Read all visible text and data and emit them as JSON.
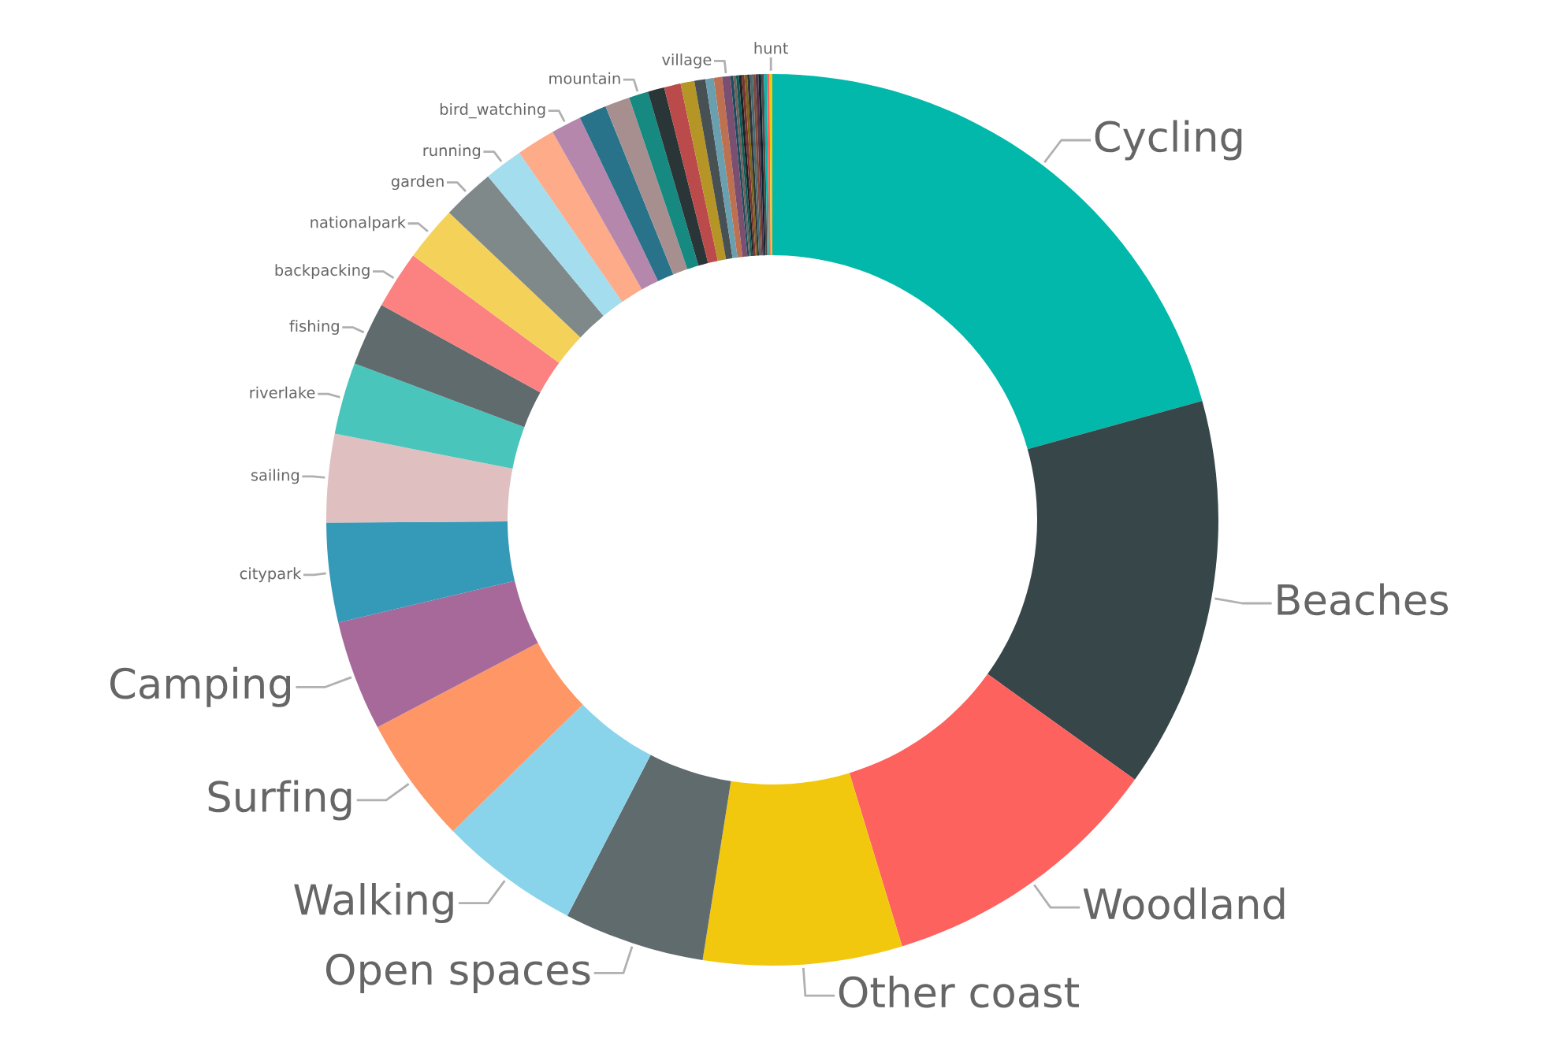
{
  "chart_data": {
    "type": "donut",
    "categories": [
      "Cycling",
      "Beaches",
      "Woodland",
      "Other coast",
      "Open spaces",
      "Walking",
      "Surfing",
      "Camping",
      "citypark",
      "sailing",
      "riverlake",
      "fishing",
      "backpacking",
      "nationalpark",
      "garden",
      "running",
      null,
      "bird_watching",
      null,
      null,
      "mountain",
      null,
      null,
      null,
      null,
      null,
      null,
      "village",
      null,
      null,
      null,
      null,
      null,
      null,
      null,
      null,
      null,
      null,
      null,
      null,
      null,
      null,
      "hunt"
    ],
    "values": [
      20.7,
      14.2,
      10.4,
      7.2,
      5.1,
      5.1,
      4.6,
      4.0,
      3.6,
      3.2,
      2.6,
      2.3,
      2.1,
      2.0,
      1.9,
      1.4,
      1.4,
      1.1,
      1.0,
      0.9,
      0.7,
      0.6,
      0.6,
      0.5,
      0.4,
      0.3,
      0.3,
      0.3,
      0.1,
      0.1,
      0.1,
      0.1,
      0.1,
      0.1,
      0.1,
      0.1,
      0.1,
      0.1,
      0.1,
      0.1,
      0.1,
      0.1,
      0.1
    ],
    "colors": [
      "#01b8aa",
      "#374649",
      "#fd625e",
      "#f2c80f",
      "#5f6b6d",
      "#8ad4eb",
      "#fe9666",
      "#a66999",
      "#3599b8",
      "#dfbfbf",
      "#4ac5bb",
      "#5f6b6d",
      "#fb8281",
      "#f4d25a",
      "#7f898a",
      "#a4ddee",
      "#fdab89",
      "#b687ac",
      "#28738a",
      "#a78f8f",
      "#168980",
      "#293537",
      "#bb4a4a",
      "#b59525",
      "#475052",
      "#6a9fb0",
      "#bd7150",
      "#7b4f71",
      "#1b4d5c",
      "#706060",
      "#0f5c55",
      "#1c2325",
      "#7d3231",
      "#796419",
      "#303638",
      "#476a75",
      "#7e4b36",
      "#52354c",
      "#0d262e",
      "#544848",
      "#01b8aa",
      "#fd625e",
      "#f2c80f"
    ],
    "legend": false
  }
}
